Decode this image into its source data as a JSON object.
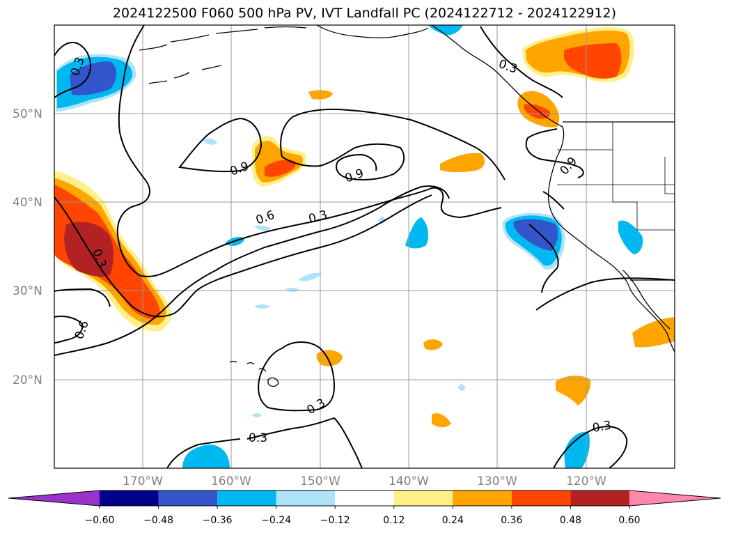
{
  "title": "2024122500 F060 500 hPa PV, IVT Landfall PC (2024122712 - 2024122912)",
  "map": {
    "lon_range": [
      -180,
      -110
    ],
    "lat_range": [
      10,
      60
    ],
    "lat_labels": [
      "20°N",
      "30°N",
      "40°N",
      "50°N"
    ],
    "lon_labels": [
      "170°W",
      "160°W",
      "150°W",
      "140°W",
      "130°W",
      "120°W"
    ],
    "contour_labels": [
      "0.3",
      "0.3",
      "0.3",
      "0.3",
      "0.3",
      "0.3",
      "0.6",
      "0.6",
      "0.9",
      "0.9",
      "0.9",
      "0.3"
    ]
  },
  "colorbar": {
    "ticks": [
      "−0.60",
      "−0.48",
      "−0.36",
      "−0.24",
      "−0.12",
      "0.12",
      "0.24",
      "0.36",
      "0.48",
      "0.60"
    ],
    "colors": [
      "#9933cc",
      "#00008b",
      "#3355cc",
      "#00b8f0",
      "#aee3fa",
      "#ffffff",
      "#fff08a",
      "#ffa500",
      "#ff4500",
      "#b22222",
      "#ff88aa"
    ]
  },
  "colors": {
    "strong_positive": "#b22222",
    "positive_high": "#ff4500",
    "positive_mid": "#ffa500",
    "positive_low": "#fff08a",
    "negative_low": "#aee3fa",
    "negative_mid": "#00b8f0",
    "negative_high": "#3355cc"
  }
}
